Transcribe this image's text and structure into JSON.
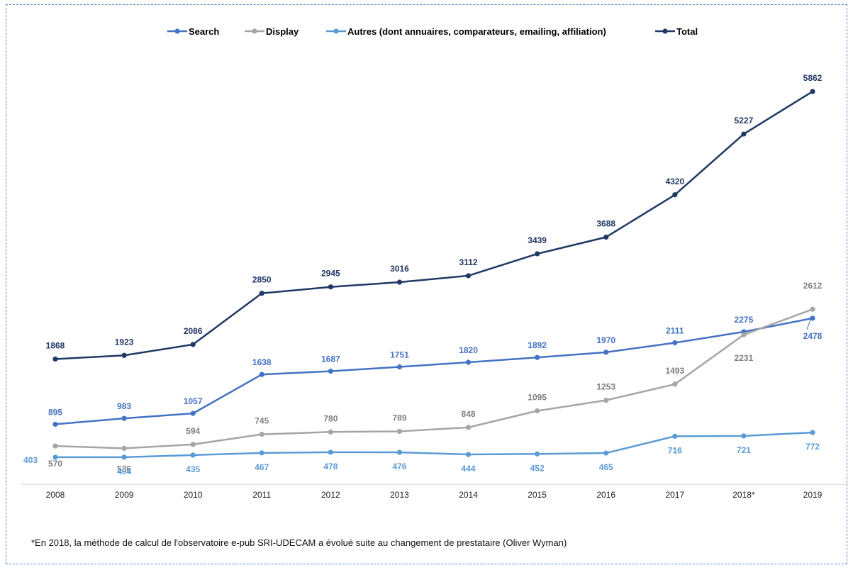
{
  "chart_data": {
    "type": "line",
    "title": "",
    "xlabel": "",
    "ylabel": "",
    "ylim": [
      0,
      6500
    ],
    "grid": false,
    "legend_position": "top",
    "categories": [
      "2008",
      "2009",
      "2010",
      "2011",
      "2012",
      "2013",
      "2014",
      "2015",
      "2016",
      "2017",
      "2018*",
      "2019"
    ],
    "series": [
      {
        "name": "Search",
        "color": "#4472c4",
        "values": [
          895,
          983,
          1057,
          1638,
          1687,
          1751,
          1820,
          1892,
          1970,
          2111,
          2275,
          2478
        ]
      },
      {
        "name": "Display",
        "color": "#a5a5a5",
        "values": [
          570,
          536,
          594,
          745,
          780,
          789,
          848,
          1095,
          1253,
          1493,
          2231,
          2612
        ]
      },
      {
        "name": "Autres (dont annuaires, comparateurs, emailing, affiliation)",
        "color": "#5b9bd5",
        "values": [
          403,
          404,
          435,
          467,
          478,
          476,
          444,
          452,
          465,
          716,
          721,
          772
        ]
      },
      {
        "name": "Total",
        "color": "#203864",
        "values": [
          1868,
          1923,
          2086,
          2850,
          2945,
          3016,
          3112,
          3439,
          3688,
          4320,
          5227,
          5862
        ]
      }
    ]
  },
  "footnote": "*En 2018, la méthode de calcul de l'observatoire e-pub SRI-UDECAM  a évolué suite au changement de prestataire (Oliver Wyman)"
}
